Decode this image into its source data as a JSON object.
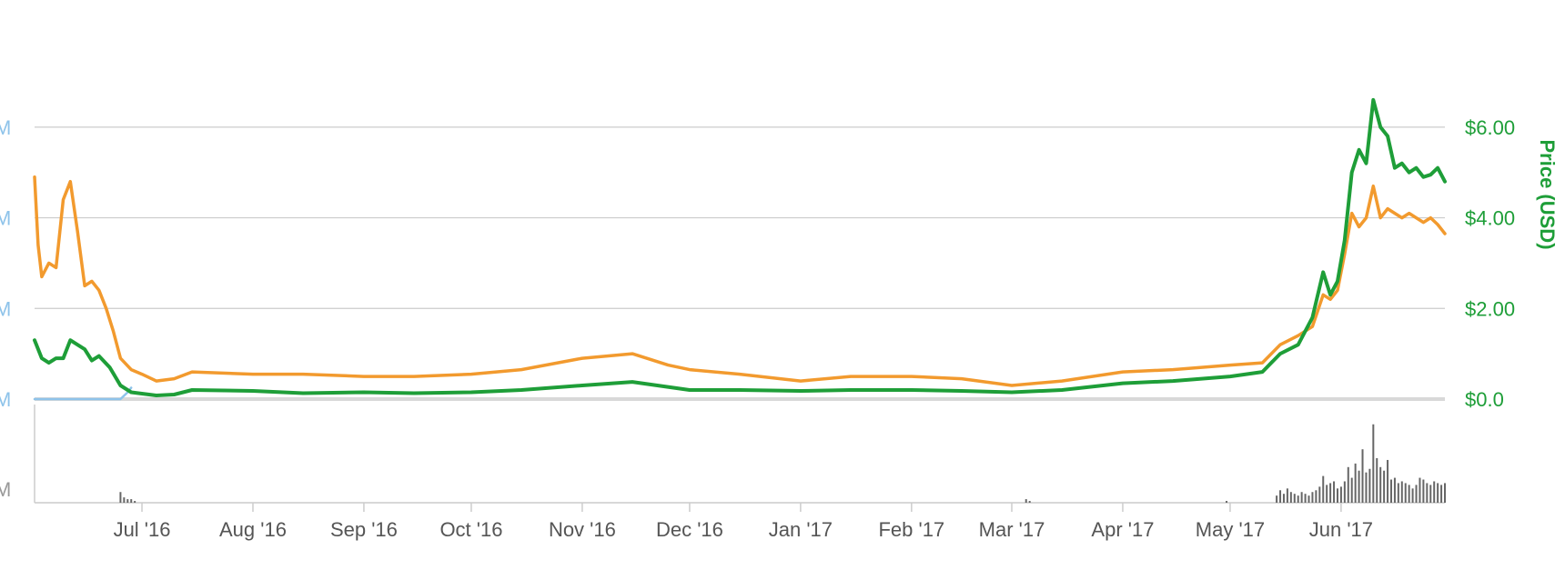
{
  "chart_data": {
    "type": "line",
    "title": "",
    "x_start": "2016-06-01",
    "x_end": "2017-06-30",
    "ylabel_right": "Price (USD)",
    "price_ticks": [
      "$0.0",
      "$2.00",
      "$4.00",
      "$6.00"
    ],
    "price_tick_values": [
      0,
      2,
      4,
      6
    ],
    "left_axis_partial_labels": [
      "M",
      "M",
      "M",
      "M"
    ],
    "volume_axis_partial_label": "M",
    "x_tick_labels": [
      "Jul '16",
      "Aug '16",
      "Sep '16",
      "Oct '16",
      "Nov '16",
      "Dec '16",
      "Jan '17",
      "Feb '17",
      "Mar '17",
      "Apr '17",
      "May '17",
      "Jun '17"
    ],
    "x_tick_dates": [
      "2016-07-01",
      "2016-08-01",
      "2016-09-01",
      "2016-10-01",
      "2016-11-01",
      "2016-12-01",
      "2017-01-01",
      "2017-02-01",
      "2017-03-01",
      "2017-04-01",
      "2017-05-01",
      "2017-06-01"
    ],
    "colors": {
      "price_usd": "#1e9e38",
      "secondary": "#f29a2e",
      "market_cap": "#8ec3ea",
      "volume": "#666666",
      "grid": "#cccccc"
    },
    "series": [
      {
        "key": "green",
        "points": [
          [
            "2016-06-01",
            1.3
          ],
          [
            "2016-06-03",
            0.9
          ],
          [
            "2016-06-05",
            0.8
          ],
          [
            "2016-06-07",
            0.9
          ],
          [
            "2016-06-09",
            0.9
          ],
          [
            "2016-06-11",
            1.3
          ],
          [
            "2016-06-13",
            1.2
          ],
          [
            "2016-06-15",
            1.1
          ],
          [
            "2016-06-17",
            0.85
          ],
          [
            "2016-06-19",
            0.95
          ],
          [
            "2016-06-22",
            0.7
          ],
          [
            "2016-06-25",
            0.3
          ],
          [
            "2016-06-28",
            0.15
          ],
          [
            "2016-07-01",
            0.12
          ],
          [
            "2016-07-05",
            0.08
          ],
          [
            "2016-07-10",
            0.1
          ],
          [
            "2016-07-15",
            0.2
          ],
          [
            "2016-08-01",
            0.18
          ],
          [
            "2016-08-15",
            0.13
          ],
          [
            "2016-09-01",
            0.15
          ],
          [
            "2016-09-15",
            0.13
          ],
          [
            "2016-10-01",
            0.15
          ],
          [
            "2016-10-15",
            0.2
          ],
          [
            "2016-11-01",
            0.3
          ],
          [
            "2016-11-15",
            0.38
          ],
          [
            "2016-12-01",
            0.2
          ],
          [
            "2016-12-15",
            0.2
          ],
          [
            "2017-01-01",
            0.18
          ],
          [
            "2017-01-15",
            0.2
          ],
          [
            "2017-02-01",
            0.2
          ],
          [
            "2017-02-15",
            0.18
          ],
          [
            "2017-03-01",
            0.15
          ],
          [
            "2017-03-15",
            0.2
          ],
          [
            "2017-04-01",
            0.35
          ],
          [
            "2017-04-15",
            0.4
          ],
          [
            "2017-05-01",
            0.5
          ],
          [
            "2017-05-10",
            0.6
          ],
          [
            "2017-05-15",
            1.0
          ],
          [
            "2017-05-20",
            1.2
          ],
          [
            "2017-05-24",
            1.8
          ],
          [
            "2017-05-27",
            2.8
          ],
          [
            "2017-05-29",
            2.3
          ],
          [
            "2017-05-31",
            2.6
          ],
          [
            "2017-06-02",
            3.5
          ],
          [
            "2017-06-04",
            5.0
          ],
          [
            "2017-06-06",
            5.5
          ],
          [
            "2017-06-08",
            5.2
          ],
          [
            "2017-06-10",
            6.6
          ],
          [
            "2017-06-12",
            6.0
          ],
          [
            "2017-06-14",
            5.8
          ],
          [
            "2017-06-16",
            5.1
          ],
          [
            "2017-06-18",
            5.2
          ],
          [
            "2017-06-20",
            5.0
          ],
          [
            "2017-06-22",
            5.1
          ],
          [
            "2017-06-24",
            4.9
          ],
          [
            "2017-06-26",
            4.95
          ],
          [
            "2017-06-28",
            5.1
          ],
          [
            "2017-06-30",
            4.8
          ]
        ]
      },
      {
        "key": "orange",
        "points": [
          [
            "2016-06-01",
            4.9
          ],
          [
            "2016-06-02",
            3.4
          ],
          [
            "2016-06-03",
            2.7
          ],
          [
            "2016-06-05",
            3.0
          ],
          [
            "2016-06-07",
            2.9
          ],
          [
            "2016-06-09",
            4.4
          ],
          [
            "2016-06-11",
            4.8
          ],
          [
            "2016-06-13",
            3.7
          ],
          [
            "2016-06-15",
            2.5
          ],
          [
            "2016-06-17",
            2.6
          ],
          [
            "2016-06-19",
            2.4
          ],
          [
            "2016-06-21",
            2.0
          ],
          [
            "2016-06-23",
            1.5
          ],
          [
            "2016-06-25",
            0.9
          ],
          [
            "2016-06-28",
            0.65
          ],
          [
            "2016-07-01",
            0.55
          ],
          [
            "2016-07-05",
            0.4
          ],
          [
            "2016-07-10",
            0.45
          ],
          [
            "2016-07-15",
            0.6
          ],
          [
            "2016-08-01",
            0.55
          ],
          [
            "2016-08-15",
            0.55
          ],
          [
            "2016-09-01",
            0.5
          ],
          [
            "2016-09-15",
            0.5
          ],
          [
            "2016-10-01",
            0.55
          ],
          [
            "2016-10-15",
            0.65
          ],
          [
            "2016-11-01",
            0.9
          ],
          [
            "2016-11-15",
            1.0
          ],
          [
            "2016-11-25",
            0.75
          ],
          [
            "2016-12-01",
            0.65
          ],
          [
            "2016-12-15",
            0.55
          ],
          [
            "2017-01-01",
            0.4
          ],
          [
            "2017-01-15",
            0.5
          ],
          [
            "2017-02-01",
            0.5
          ],
          [
            "2017-02-15",
            0.45
          ],
          [
            "2017-03-01",
            0.3
          ],
          [
            "2017-03-15",
            0.4
          ],
          [
            "2017-04-01",
            0.6
          ],
          [
            "2017-04-15",
            0.65
          ],
          [
            "2017-05-01",
            0.75
          ],
          [
            "2017-05-10",
            0.8
          ],
          [
            "2017-05-15",
            1.2
          ],
          [
            "2017-05-20",
            1.4
          ],
          [
            "2017-05-24",
            1.6
          ],
          [
            "2017-05-27",
            2.3
          ],
          [
            "2017-05-29",
            2.2
          ],
          [
            "2017-05-31",
            2.4
          ],
          [
            "2017-06-02",
            3.2
          ],
          [
            "2017-06-04",
            4.1
          ],
          [
            "2017-06-06",
            3.8
          ],
          [
            "2017-06-08",
            4.0
          ],
          [
            "2017-06-10",
            4.7
          ],
          [
            "2017-06-12",
            4.0
          ],
          [
            "2017-06-14",
            4.2
          ],
          [
            "2017-06-16",
            4.1
          ],
          [
            "2017-06-18",
            4.0
          ],
          [
            "2017-06-20",
            4.1
          ],
          [
            "2017-06-22",
            4.0
          ],
          [
            "2017-06-24",
            3.9
          ],
          [
            "2017-06-26",
            4.0
          ],
          [
            "2017-06-28",
            3.85
          ],
          [
            "2017-06-30",
            3.65
          ]
        ]
      },
      {
        "key": "blue",
        "points": [
          [
            "2016-06-01",
            0.0
          ],
          [
            "2016-06-25",
            0.0
          ],
          [
            "2016-06-27",
            0.15
          ],
          [
            "2016-06-28",
            0.25
          ]
        ]
      }
    ],
    "volume": [
      [
        "2016-06-25",
        6
      ],
      [
        "2016-06-26",
        3
      ],
      [
        "2016-06-27",
        2
      ],
      [
        "2016-06-28",
        2
      ],
      [
        "2016-06-29",
        1
      ],
      [
        "2017-03-05",
        2
      ],
      [
        "2017-03-06",
        1
      ],
      [
        "2017-04-30",
        1
      ],
      [
        "2017-05-14",
        4
      ],
      [
        "2017-05-15",
        7
      ],
      [
        "2017-05-16",
        5
      ],
      [
        "2017-05-17",
        8
      ],
      [
        "2017-05-18",
        6
      ],
      [
        "2017-05-19",
        5
      ],
      [
        "2017-05-20",
        4
      ],
      [
        "2017-05-21",
        6
      ],
      [
        "2017-05-22",
        5
      ],
      [
        "2017-05-23",
        4
      ],
      [
        "2017-05-24",
        6
      ],
      [
        "2017-05-25",
        7
      ],
      [
        "2017-05-26",
        9
      ],
      [
        "2017-05-27",
        15
      ],
      [
        "2017-05-28",
        10
      ],
      [
        "2017-05-29",
        11
      ],
      [
        "2017-05-30",
        12
      ],
      [
        "2017-05-31",
        8
      ],
      [
        "2017-06-01",
        9
      ],
      [
        "2017-06-02",
        12
      ],
      [
        "2017-06-03",
        20
      ],
      [
        "2017-06-04",
        14
      ],
      [
        "2017-06-05",
        22
      ],
      [
        "2017-06-06",
        18
      ],
      [
        "2017-06-07",
        30
      ],
      [
        "2017-06-08",
        17
      ],
      [
        "2017-06-09",
        19
      ],
      [
        "2017-06-10",
        44
      ],
      [
        "2017-06-11",
        25
      ],
      [
        "2017-06-12",
        20
      ],
      [
        "2017-06-13",
        18
      ],
      [
        "2017-06-14",
        24
      ],
      [
        "2017-06-15",
        13
      ],
      [
        "2017-06-16",
        14
      ],
      [
        "2017-06-17",
        11
      ],
      [
        "2017-06-18",
        12
      ],
      [
        "2017-06-19",
        11
      ],
      [
        "2017-06-20",
        10
      ],
      [
        "2017-06-21",
        8
      ],
      [
        "2017-06-22",
        10
      ],
      [
        "2017-06-23",
        14
      ],
      [
        "2017-06-24",
        13
      ],
      [
        "2017-06-25",
        11
      ],
      [
        "2017-06-26",
        10
      ],
      [
        "2017-06-27",
        12
      ],
      [
        "2017-06-28",
        11
      ],
      [
        "2017-06-29",
        10
      ],
      [
        "2017-06-30",
        11
      ]
    ]
  }
}
